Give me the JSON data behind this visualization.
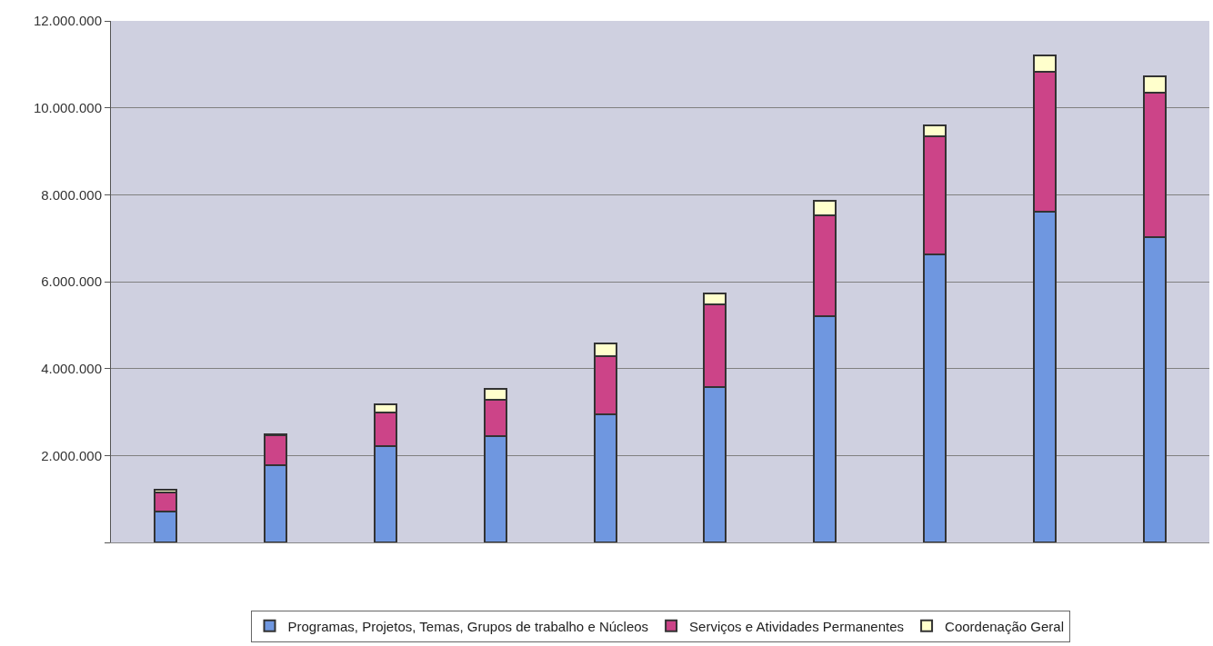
{
  "chart_data": {
    "type": "bar",
    "stacked": true,
    "categories": [
      null,
      null,
      null,
      null,
      null,
      null,
      null,
      null,
      null,
      null
    ],
    "series": [
      {
        "name": "Programas, Projetos, Temas, Grupos de trabalho e Núcleos",
        "color": "#6f97e0",
        "values": [
          720000,
          1770000,
          2210000,
          2450000,
          2940000,
          3580000,
          5210000,
          6630000,
          7620000,
          7020000
        ]
      },
      {
        "name": "Serviços e Atividades Permanentes",
        "color": "#cc4488",
        "values": [
          420000,
          700000,
          770000,
          840000,
          1340000,
          1890000,
          2320000,
          2720000,
          3210000,
          3330000
        ]
      },
      {
        "name": "Coordenação Geral",
        "color": "#ffffcc",
        "values": [
          80000,
          20000,
          200000,
          240000,
          290000,
          260000,
          340000,
          250000,
          370000,
          370000
        ]
      }
    ],
    "ylim": [
      0,
      12000000
    ],
    "yticks": [
      {
        "value": 0,
        "label": null
      },
      {
        "value": 2000000,
        "label": "2.000.000"
      },
      {
        "value": 4000000,
        "label": "4.000.000"
      },
      {
        "value": 6000000,
        "label": "6.000.000"
      },
      {
        "value": 8000000,
        "label": "8.000.000"
      },
      {
        "value": 10000000,
        "label": "10.000.000"
      },
      {
        "value": 12000000,
        "label": "12.000.000"
      }
    ],
    "grid": "y",
    "legend": "bottom"
  }
}
